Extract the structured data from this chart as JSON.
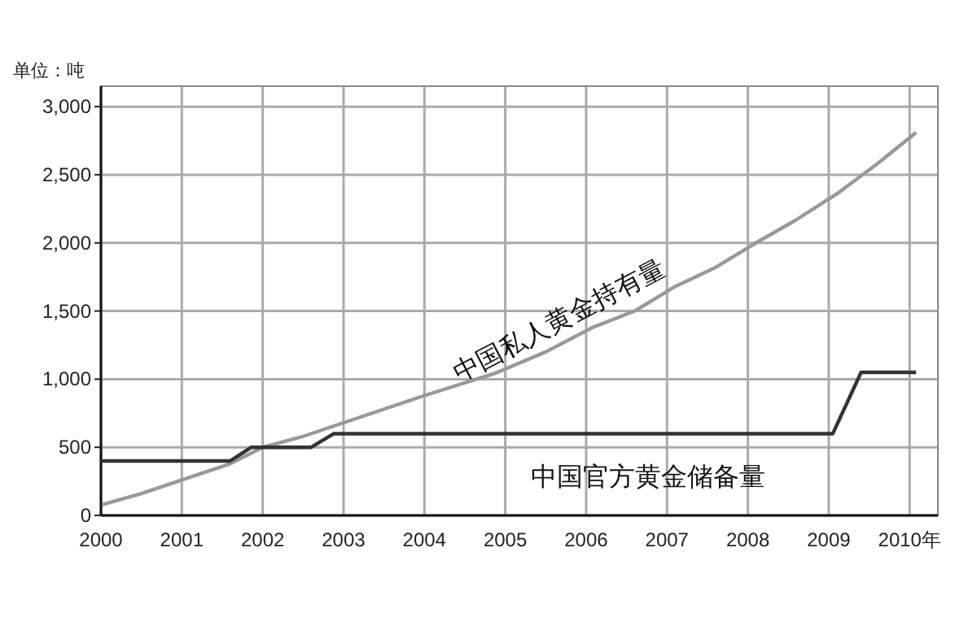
{
  "chart_data": {
    "type": "line",
    "ylabel": "单位：吨",
    "xlim": [
      2000,
      2010.35
    ],
    "ylim": [
      0,
      3150
    ],
    "xticks": [
      2000,
      2001,
      2002,
      2003,
      2004,
      2005,
      2006,
      2007,
      2008,
      2009,
      {
        "value": 2010,
        "label": "2010年"
      }
    ],
    "yticks": [
      {
        "value": 0,
        "label": "0"
      },
      {
        "value": 500,
        "label": "500"
      },
      {
        "value": 1000,
        "label": "1,000"
      },
      {
        "value": 1500,
        "label": "1,500"
      },
      {
        "value": 2000,
        "label": "2,000"
      },
      {
        "value": 2500,
        "label": "2,500"
      },
      {
        "value": 3000,
        "label": "3,000"
      }
    ],
    "grid": true,
    "marker": "none",
    "line_style": "solid",
    "series": [
      {
        "name": "中国私人黄金持有量",
        "color": "#999999",
        "x": [
          2000.02,
          2000.5,
          2001,
          2001.6,
          2002,
          2002.5,
          2003,
          2003.5,
          2004,
          2004.86,
          2005.5,
          2006.08,
          2006.6,
          2007.1,
          2007.6,
          2008.1,
          2008.6,
          2009.1,
          2009.6,
          2010.08
        ],
        "values": [
          80,
          160,
          260,
          380,
          500,
          580,
          680,
          780,
          880,
          1040,
          1200,
          1380,
          1500,
          1680,
          1820,
          2000,
          2170,
          2360,
          2580,
          2810
        ]
      },
      {
        "name": "中国官方黄金储备量",
        "color": "#333333",
        "x": [
          2000,
          2001.6,
          2001.86,
          2002.6,
          2002.88,
          2009.05,
          2009.4,
          2010.08
        ],
        "values": [
          400,
          400,
          500,
          500,
          600,
          600,
          1050,
          1050
        ]
      }
    ]
  }
}
